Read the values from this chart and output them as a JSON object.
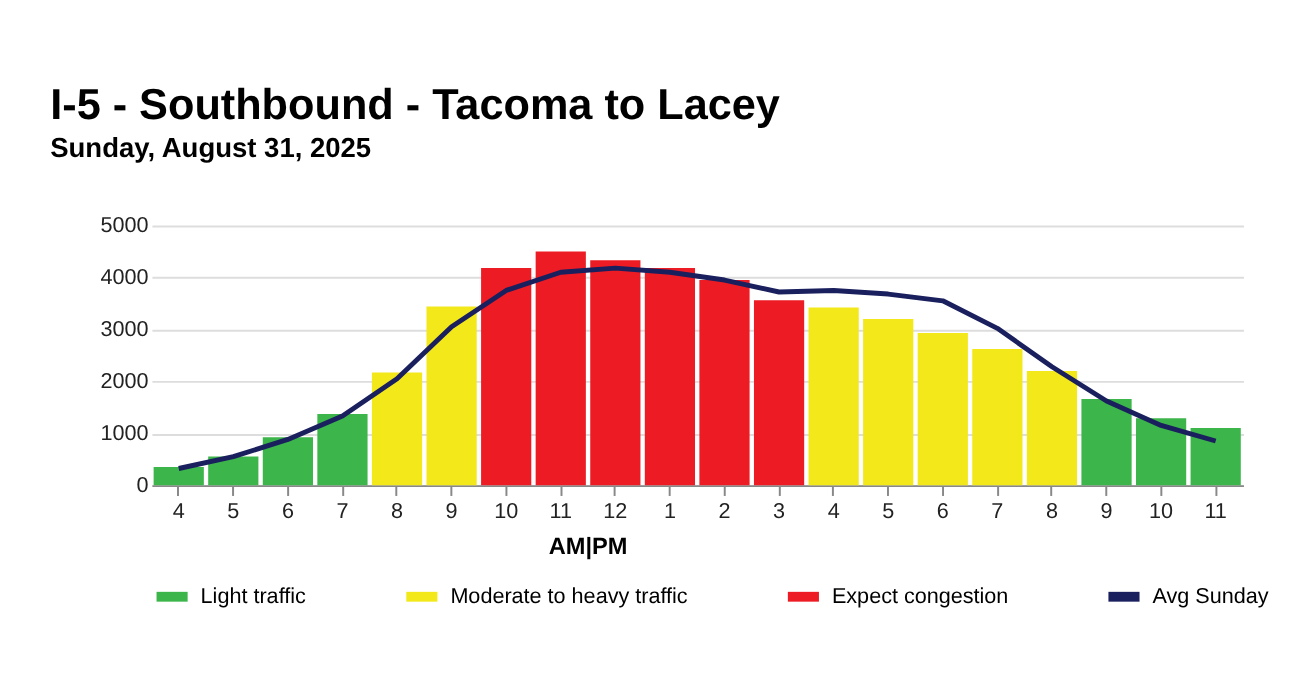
{
  "chart_data": {
    "type": "bar",
    "title": "I-5 - Southbound - Tacoma to Lacey",
    "subtitle": "Sunday, August 31, 2025",
    "categories": [
      "4",
      "5",
      "6",
      "7",
      "8",
      "9",
      "10",
      "11",
      "12",
      "1",
      "2",
      "3",
      "4",
      "5",
      "6",
      "7",
      "8",
      "9",
      "10",
      "11"
    ],
    "series": [
      {
        "name": "Light traffic",
        "color": "#3cb54a",
        "values": [
          350,
          550,
          920,
          1370,
          null,
          null,
          null,
          null,
          null,
          null,
          null,
          null,
          null,
          null,
          null,
          null,
          null,
          1660,
          1290,
          1100
        ]
      },
      {
        "name": "Moderate to heavy traffic",
        "color": "#f2e81a",
        "values": [
          null,
          null,
          null,
          null,
          2170,
          3440,
          null,
          null,
          null,
          null,
          null,
          null,
          3420,
          3200,
          2930,
          2620,
          2200,
          null,
          null,
          null
        ]
      },
      {
        "name": "Expect congestion",
        "color": "#ed1c24",
        "values": [
          null,
          null,
          null,
          null,
          null,
          null,
          4180,
          4500,
          4330,
          4180,
          3950,
          3560,
          null,
          null,
          null,
          null,
          null,
          null,
          null,
          null
        ]
      },
      {
        "name": "Avg Sunday",
        "type": "line",
        "color": "#1a1f5e",
        "values": [
          320,
          550,
          880,
          1330,
          2050,
          3050,
          3750,
          4100,
          4180,
          4100,
          3950,
          3720,
          3750,
          3680,
          3550,
          3020,
          2280,
          1620,
          1150,
          850
        ]
      }
    ],
    "ylim": [
      0,
      5000
    ],
    "yticks": [
      0,
      1000,
      2000,
      3000,
      4000,
      5000
    ],
    "grid": "y",
    "legend": "bottom",
    "annotations": [
      "AM|PM"
    ]
  }
}
